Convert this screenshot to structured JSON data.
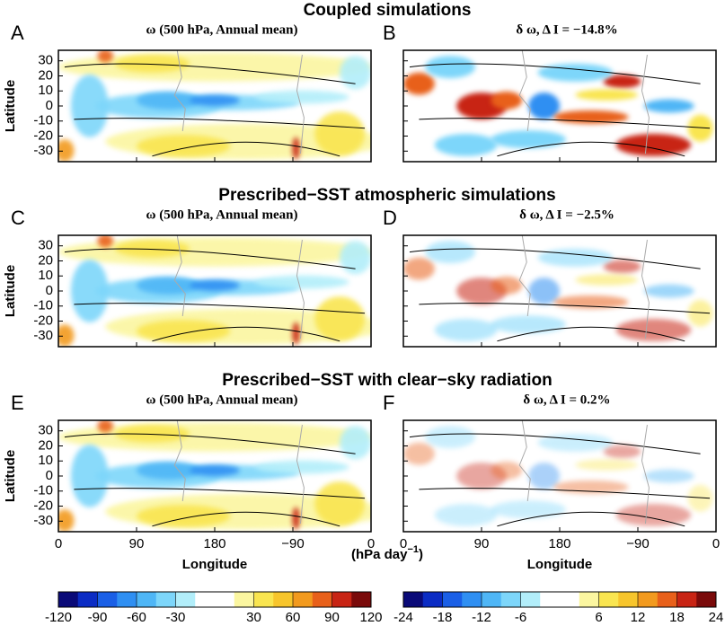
{
  "chart_data": {
    "type": "heatmap",
    "row_titles": [
      "Coupled simulations",
      "Prescribed−SST atmospheric simulations",
      "Prescribed−SST with clear−sky radiation"
    ],
    "panels": [
      {
        "letter": "A",
        "title": "ω (500 hPa, Annual mean)"
      },
      {
        "letter": "B",
        "title": "δ ω, Δ I = −14.8%"
      },
      {
        "letter": "C",
        "title": "ω (500 hPa, Annual mean)"
      },
      {
        "letter": "D",
        "title": "δ ω, Δ I = −2.5%"
      },
      {
        "letter": "E",
        "title": "ω (500 hPa, Annual mean)"
      },
      {
        "letter": "F",
        "title": "δ ω, Δ I = 0.2%"
      }
    ],
    "xlabel": "Longitude",
    "ylabel": "Latitude",
    "xlim": [
      0,
      360
    ],
    "xticks": [
      0,
      90,
      180,
      {
        "value": 270,
        "label": "−90"
      },
      {
        "value": 360,
        "label": "0"
      }
    ],
    "ylim": [
      -37,
      37
    ],
    "yticks": [
      -30,
      -20,
      -10,
      0,
      10,
      20,
      30
    ],
    "units": {
      "base": "(hPa day",
      "exponent": "−1",
      "close": ")"
    },
    "colorbars": [
      {
        "lim": [
          -120,
          120
        ],
        "ticks": [
          -120,
          -90,
          -60,
          -30,
          30,
          60,
          90,
          120
        ]
      },
      {
        "lim": [
          -24,
          24
        ],
        "ticks": [
          -24,
          -18,
          -12,
          -6,
          6,
          12,
          18,
          24
        ]
      }
    ],
    "colors": [
      "#0a0a78",
      "#0b2cc4",
      "#1a5fe6",
      "#2f8ff2",
      "#4fb6f6",
      "#7dd6fa",
      "#b2eefa",
      "#ffffff",
      "#ffffff",
      "#fbf6a0",
      "#f9e550",
      "#f7c52c",
      "#f29a1e",
      "#e8601a",
      "#c82414",
      "#7a0a0a"
    ]
  }
}
